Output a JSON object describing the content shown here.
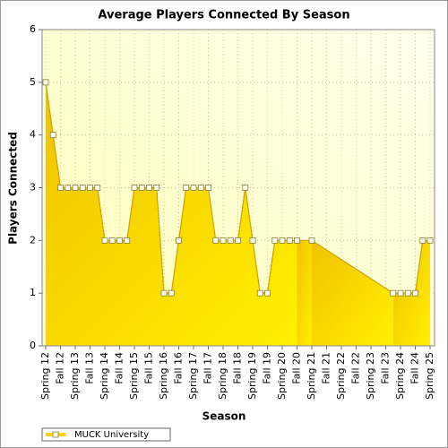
{
  "chart_data": {
    "type": "area",
    "title": "Average Players Connected By Season",
    "x_label": "Season",
    "y_label": "Players Connected",
    "categories": [
      "Spring 12",
      null,
      "Fall 12",
      null,
      "Spring 13",
      null,
      "Fall 13",
      null,
      "Spring 14",
      null,
      "Fall 14",
      null,
      "Spring 15",
      null,
      "Fall 15",
      null,
      "Spring 16",
      null,
      "Fall 16",
      null,
      "Spring 17",
      null,
      "Fall 17",
      null,
      "Spring 18",
      null,
      "Fall 18",
      null,
      "Spring 19",
      null,
      "Fall 19",
      null,
      "Spring 20",
      null,
      "Fall 20",
      null,
      "Spring 21",
      null,
      "Fall 21",
      null,
      "Spring 22",
      null,
      "Fall 22",
      null,
      "Spring 23",
      null,
      "Fall 23",
      null,
      "Spring 24",
      null,
      "Fall 24",
      null,
      "Spring 25"
    ],
    "series": [
      {
        "name": "MUCK University",
        "color": "#ffd400",
        "values": [
          5,
          4,
          3,
          3,
          3,
          3,
          3,
          3,
          2,
          2,
          2,
          2,
          3,
          3,
          3,
          3,
          1,
          1,
          2,
          3,
          3,
          3,
          3,
          2,
          2,
          2,
          2,
          3,
          2,
          1,
          1,
          2,
          2,
          2,
          2,
          null,
          2,
          null,
          null,
          null,
          null,
          null,
          null,
          null,
          null,
          null,
          null,
          1,
          1,
          1,
          1,
          2,
          2
        ]
      }
    ],
    "ylim": [
      0,
      6
    ],
    "yticks": [
      0,
      1,
      2,
      3,
      4,
      5,
      6
    ],
    "grid": true,
    "legend": "bottom-left"
  }
}
